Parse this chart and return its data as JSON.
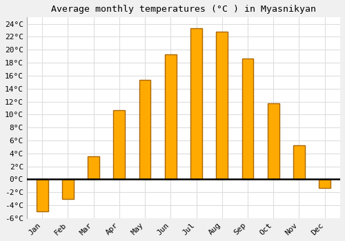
{
  "title": "Average monthly temperatures (°C ) in Myasnikyan",
  "months": [
    "Jan",
    "Feb",
    "Mar",
    "Apr",
    "May",
    "Jun",
    "Jul",
    "Aug",
    "Sep",
    "Oct",
    "Nov",
    "Dec"
  ],
  "temperatures": [
    -5.0,
    -3.0,
    3.5,
    10.7,
    15.3,
    19.3,
    23.3,
    22.8,
    18.7,
    11.7,
    5.2,
    -1.3
  ],
  "bar_color": "#FFAA00",
  "bar_edge_color": "#AA6600",
  "bar_width": 0.45,
  "ylim": [
    -6,
    25
  ],
  "yticks": [
    -6,
    -4,
    -2,
    0,
    2,
    4,
    6,
    8,
    10,
    12,
    14,
    16,
    18,
    20,
    22,
    24
  ],
  "background_color": "#F0F0F0",
  "plot_bg_color": "#FFFFFF",
  "grid_color": "#DDDDDD",
  "title_fontsize": 9.5,
  "tick_fontsize": 8,
  "font_family": "monospace"
}
